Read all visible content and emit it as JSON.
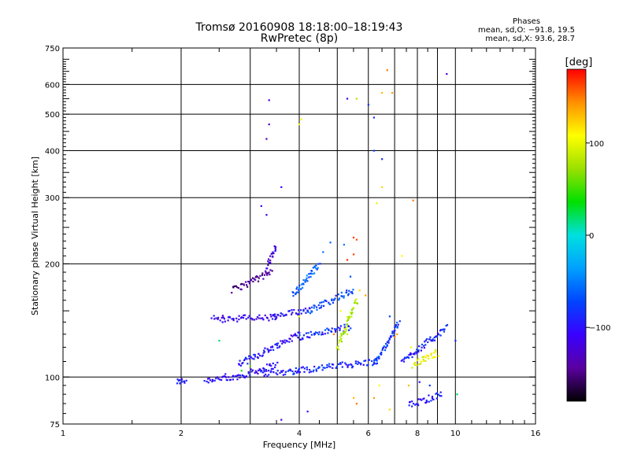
{
  "header": {
    "title": "Tromsø 20160908 18:18:00–18:19:43",
    "subtitle": "RwPretec (8p)"
  },
  "phases": {
    "title": "Phases",
    "line_o": "mean, sd,O: −91.8, 19.5",
    "line_x": "mean, sd,X:  93.6, 28.7"
  },
  "colorbar": {
    "label": "[deg]",
    "tick_labels": [
      "100",
      "0",
      "−100"
    ],
    "tick_values": [
      100,
      0,
      -100
    ],
    "range": [
      -180,
      180
    ],
    "colors": [
      "#000000",
      "#5a00a0",
      "#3a00ff",
      "#0044ff",
      "#00a0ff",
      "#00e0e0",
      "#00e000",
      "#9ae000",
      "#ffff00",
      "#ff9000",
      "#ff0000"
    ]
  },
  "chart_data": {
    "type": "scatter",
    "xlabel": "Frequency [MHz]",
    "ylabel": "Stationary phase Virtual Height [km]",
    "xscale": "log",
    "yscale": "log",
    "xlim": [
      1,
      16
    ],
    "ylim": [
      75,
      750
    ],
    "xticks": [
      1,
      2,
      4,
      6,
      8,
      10,
      16
    ],
    "yticks": [
      75,
      100,
      200,
      300,
      400,
      500,
      600,
      750
    ],
    "x_minor_grid": [
      3,
      5,
      7,
      9
    ],
    "color_quantity": "phase [deg]",
    "traces": [
      {
        "x": [
          1.95,
          2.05
        ],
        "y": [
          97,
          98
        ],
        "phase": -95
      },
      {
        "x": [
          2.3,
          2.6
        ],
        "y": [
          98,
          100
        ],
        "phase": -100
      },
      {
        "x": [
          2.6,
          3.5
        ],
        "y": [
          98,
          108
        ],
        "phase": -105
      },
      {
        "x": [
          3.2,
          4.0
        ],
        "y": [
          102,
          104
        ],
        "phase": -95
      },
      {
        "x": [
          3.9,
          6.3
        ],
        "y": [
          104,
          110
        ],
        "phase": -85
      },
      {
        "x": [
          2.8,
          4.0
        ],
        "y": [
          108,
          130
        ],
        "phase": -100
      },
      {
        "x": [
          4.0,
          5.4
        ],
        "y": [
          128,
          136
        ],
        "phase": -85
      },
      {
        "x": [
          2.4,
          3.5
        ],
        "y": [
          143,
          144
        ],
        "phase": -110
      },
      {
        "x": [
          3.4,
          4.3
        ],
        "y": [
          144,
          152
        ],
        "phase": -100
      },
      {
        "x": [
          4.2,
          5.5
        ],
        "y": [
          150,
          170
        ],
        "phase": -70
      },
      {
        "x": [
          2.7,
          3.4
        ],
        "y": [
          170,
          190
        ],
        "phase": -145
      },
      {
        "x": [
          3.3,
          3.5
        ],
        "y": [
          195,
          225
        ],
        "phase": -120
      },
      {
        "x": [
          3.85,
          4.5
        ],
        "y": [
          165,
          200
        ],
        "phase": -60
      },
      {
        "x": [
          5.0,
          5.6
        ],
        "y": [
          120,
          160
        ],
        "phase": 80
      },
      {
        "x": [
          6.2,
          7.2
        ],
        "y": [
          108,
          140
        ],
        "phase": -80
      },
      {
        "x": [
          7.3,
          9.5
        ],
        "y": [
          110,
          135
        ],
        "phase": -90
      },
      {
        "x": [
          7.8,
          9.0
        ],
        "y": [
          108,
          116
        ],
        "phase": 100
      },
      {
        "x": [
          7.6,
          9.2
        ],
        "y": [
          84,
          90
        ],
        "phase": -95
      }
    ],
    "scatter": [
      {
        "x": 3.35,
        "y": 545,
        "phase": -120
      },
      {
        "x": 3.35,
        "y": 470,
        "phase": -130
      },
      {
        "x": 3.3,
        "y": 430,
        "phase": -135
      },
      {
        "x": 3.6,
        "y": 320,
        "phase": -110
      },
      {
        "x": 3.2,
        "y": 285,
        "phase": -120
      },
      {
        "x": 3.3,
        "y": 270,
        "phase": -115
      },
      {
        "x": 4.0,
        "y": 470,
        "phase": 110
      },
      {
        "x": 4.05,
        "y": 485,
        "phase": 105
      },
      {
        "x": 5.3,
        "y": 550,
        "phase": -120
      },
      {
        "x": 5.6,
        "y": 550,
        "phase": 80
      },
      {
        "x": 6.0,
        "y": 530,
        "phase": -80
      },
      {
        "x": 6.2,
        "y": 490,
        "phase": -85
      },
      {
        "x": 6.7,
        "y": 655,
        "phase": 150
      },
      {
        "x": 6.5,
        "y": 570,
        "phase": 130
      },
      {
        "x": 6.9,
        "y": 570,
        "phase": 140
      },
      {
        "x": 9.5,
        "y": 640,
        "phase": -120
      },
      {
        "x": 6.2,
        "y": 400,
        "phase": -80
      },
      {
        "x": 6.5,
        "y": 380,
        "phase": -90
      },
      {
        "x": 6.5,
        "y": 320,
        "phase": 120
      },
      {
        "x": 6.3,
        "y": 290,
        "phase": 100
      },
      {
        "x": 7.8,
        "y": 295,
        "phase": 150
      },
      {
        "x": 5.5,
        "y": 235,
        "phase": 165
      },
      {
        "x": 5.6,
        "y": 232,
        "phase": 160
      },
      {
        "x": 5.3,
        "y": 205,
        "phase": 170
      },
      {
        "x": 5.5,
        "y": 212,
        "phase": 165
      },
      {
        "x": 5.2,
        "y": 225,
        "phase": -50
      },
      {
        "x": 4.8,
        "y": 228,
        "phase": -60
      },
      {
        "x": 4.6,
        "y": 215,
        "phase": -55
      },
      {
        "x": 5.4,
        "y": 185,
        "phase": -70
      },
      {
        "x": 5.7,
        "y": 170,
        "phase": 120
      },
      {
        "x": 5.9,
        "y": 165,
        "phase": 140
      },
      {
        "x": 5.1,
        "y": 150,
        "phase": 110
      },
      {
        "x": 4.0,
        "y": 145,
        "phase": 100
      },
      {
        "x": 4.9,
        "y": 130,
        "phase": 150
      },
      {
        "x": 6.8,
        "y": 145,
        "phase": -70
      },
      {
        "x": 7.0,
        "y": 128,
        "phase": 150
      },
      {
        "x": 7.3,
        "y": 210,
        "phase": 110
      },
      {
        "x": 7.1,
        "y": 130,
        "phase": 140
      },
      {
        "x": 5.5,
        "y": 88,
        "phase": 130
      },
      {
        "x": 5.6,
        "y": 85,
        "phase": 150
      },
      {
        "x": 6.2,
        "y": 88,
        "phase": 140
      },
      {
        "x": 6.4,
        "y": 95,
        "phase": 110
      },
      {
        "x": 6.8,
        "y": 82,
        "phase": 120
      },
      {
        "x": 7.6,
        "y": 95,
        "phase": 130
      },
      {
        "x": 8.1,
        "y": 97,
        "phase": -100
      },
      {
        "x": 8.6,
        "y": 95,
        "phase": -80
      },
      {
        "x": 10.1,
        "y": 90,
        "phase": 20
      },
      {
        "x": 10.0,
        "y": 125,
        "phase": -90
      },
      {
        "x": 2.55,
        "y": 140,
        "phase": -110
      },
      {
        "x": 2.5,
        "y": 125,
        "phase": 20
      },
      {
        "x": 2.85,
        "y": 104,
        "phase": 40
      },
      {
        "x": 3.0,
        "y": 107,
        "phase": 60
      },
      {
        "x": 3.6,
        "y": 77,
        "phase": -120
      },
      {
        "x": 4.2,
        "y": 81,
        "phase": -100
      },
      {
        "x": 5.0,
        "y": 120,
        "phase": 120
      },
      {
        "x": 5.3,
        "y": 130,
        "phase": 90
      },
      {
        "x": 7.7,
        "y": 120,
        "phase": 100
      },
      {
        "x": 8.9,
        "y": 118,
        "phase": 95
      }
    ]
  }
}
